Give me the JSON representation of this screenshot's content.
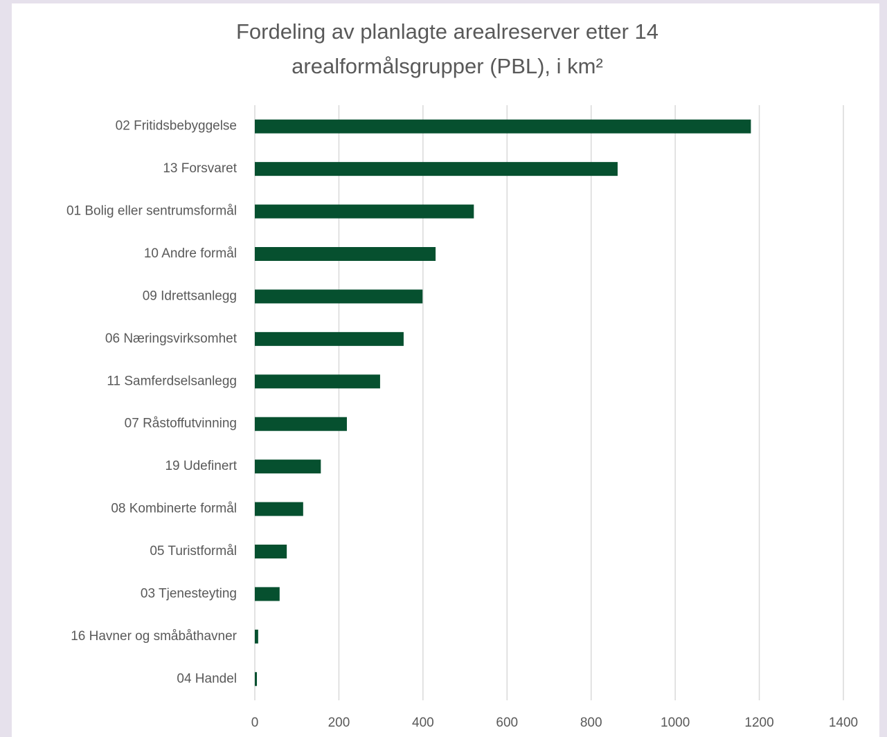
{
  "chart_data": {
    "type": "bar",
    "orientation": "horizontal",
    "title": "Fordeling av planlagte arealreserver etter 14 arealformålsgrupper (PBL), i km²",
    "categories": [
      "02 Fritidsbebyggelse",
      "13 Forsvaret",
      "01 Bolig eller sentrumsformål",
      "10 Andre formål",
      "09 Idrettsanlegg",
      "06 Næringsvirksomhet",
      "11 Samferdselsanlegg",
      "07 Råstoffutvinning",
      "19 Udefinert",
      "08 Kombinerte formål",
      "05 Turistformål",
      "03 Tjenesteyting",
      "16 Havner og småbåthavner",
      "04 Handel"
    ],
    "values": [
      1180,
      863,
      521,
      430,
      399,
      354,
      298,
      219,
      157,
      115,
      76,
      59,
      8,
      5
    ],
    "color": "#06502f",
    "xlim": [
      0,
      1400
    ],
    "xticks": [
      0,
      200,
      400,
      600,
      800,
      1000,
      1200,
      1400
    ],
    "grid": true
  }
}
